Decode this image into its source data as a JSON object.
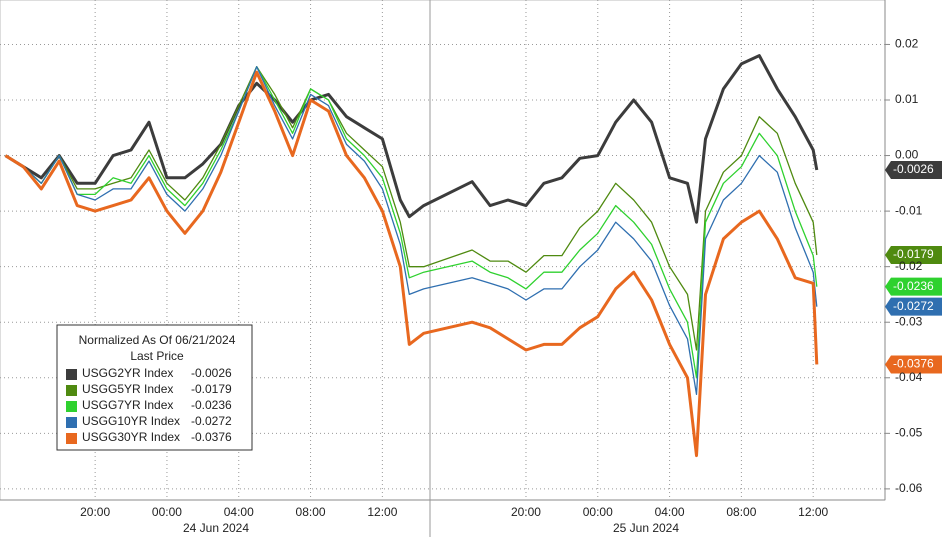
{
  "chart_data": {
    "type": "line",
    "legend_title": "Normalized As Of 06/21/2024",
    "legend_subtitle": "Last Price",
    "x": [
      -9,
      -8,
      -7,
      -6,
      -5,
      -4,
      -3,
      -2,
      -1,
      0,
      1,
      2,
      3,
      4,
      5,
      6,
      7,
      8,
      9,
      10,
      11,
      12,
      13,
      13.5,
      14.3,
      17,
      18,
      19,
      20,
      21,
      22,
      23,
      24,
      25,
      26,
      27,
      28,
      29,
      29.5,
      30,
      31,
      32,
      33,
      34,
      35,
      36,
      36.2
    ],
    "series": [
      {
        "name": "USGG2YR Index",
        "color": "#3c3c3c",
        "values": [
          0,
          -0.002,
          -0.004,
          0,
          -0.005,
          -0.005,
          0,
          0.001,
          0.006,
          -0.004,
          -0.004,
          -0.0015,
          0.002,
          0.009,
          0.013,
          0.01,
          0.006,
          0.01,
          0.011,
          0.007,
          0.005,
          0.003,
          -0.008,
          -0.011,
          -0.009,
          -0.0047,
          -0.009,
          -0.008,
          -0.009,
          -0.005,
          -0.004,
          -0.0005,
          0,
          0.006,
          0.01,
          0.006,
          -0.004,
          -0.005,
          -0.012,
          0.003,
          0.012,
          0.0165,
          0.018,
          0.012,
          0.007,
          0.001,
          -0.0026
        ]
      },
      {
        "name": "USGG5YR Index",
        "color": "#4f8a10",
        "values": [
          0,
          -0.002,
          -0.005,
          0,
          -0.006,
          -0.006,
          -0.005,
          -0.004,
          0.001,
          -0.005,
          -0.008,
          -0.004,
          0.002,
          0.009,
          0.016,
          0.011,
          0.005,
          0.012,
          0.01,
          0.004,
          0.001,
          -0.002,
          -0.012,
          -0.02,
          -0.02,
          -0.017,
          -0.019,
          -0.019,
          -0.021,
          -0.018,
          -0.018,
          -0.013,
          -0.01,
          -0.005,
          -0.008,
          -0.012,
          -0.02,
          -0.025,
          -0.035,
          -0.01,
          -0.003,
          0,
          0.007,
          0.004,
          -0.005,
          -0.012,
          -0.0179
        ]
      },
      {
        "name": "USGG7YR Index",
        "color": "#2fd12f",
        "values": [
          0,
          -0.002,
          -0.005,
          0,
          -0.007,
          -0.007,
          -0.004,
          -0.005,
          0,
          -0.006,
          -0.009,
          -0.005,
          0.001,
          0.008,
          0.016,
          0.01,
          0.004,
          0.012,
          0.01,
          0.003,
          0,
          -0.004,
          -0.014,
          -0.022,
          -0.021,
          -0.019,
          -0.021,
          -0.022,
          -0.024,
          -0.021,
          -0.021,
          -0.017,
          -0.014,
          -0.009,
          -0.012,
          -0.016,
          -0.024,
          -0.03,
          -0.04,
          -0.012,
          -0.005,
          -0.002,
          0.004,
          0,
          -0.01,
          -0.018,
          -0.0236
        ]
      },
      {
        "name": "USGG10YR Index",
        "color": "#2f6fb0",
        "values": [
          0,
          -0.002,
          -0.005,
          0,
          -0.007,
          -0.008,
          -0.006,
          -0.006,
          -0.001,
          -0.007,
          -0.01,
          -0.006,
          0,
          0.008,
          0.016,
          0.009,
          0.003,
          0.011,
          0.009,
          0.002,
          -0.001,
          -0.006,
          -0.016,
          -0.025,
          -0.024,
          -0.022,
          -0.023,
          -0.024,
          -0.026,
          -0.024,
          -0.024,
          -0.02,
          -0.017,
          -0.012,
          -0.015,
          -0.019,
          -0.027,
          -0.033,
          -0.043,
          -0.015,
          -0.008,
          -0.005,
          0,
          -0.003,
          -0.013,
          -0.021,
          -0.0272
        ]
      },
      {
        "name": "USGG30YR Index",
        "color": "#e8681f",
        "values": [
          0,
          -0.002,
          -0.006,
          -0.001,
          -0.009,
          -0.01,
          -0.009,
          -0.008,
          -0.004,
          -0.01,
          -0.014,
          -0.01,
          -0.003,
          0.006,
          0.015,
          0.008,
          0,
          0.01,
          0.008,
          0,
          -0.004,
          -0.01,
          -0.02,
          -0.034,
          -0.032,
          -0.03,
          -0.031,
          -0.033,
          -0.035,
          -0.034,
          -0.034,
          -0.031,
          -0.029,
          -0.024,
          -0.021,
          -0.026,
          -0.034,
          -0.04,
          -0.054,
          -0.025,
          -0.015,
          -0.012,
          -0.01,
          -0.015,
          -0.022,
          -0.023,
          -0.0376
        ]
      }
    ],
    "xlim": [
      -9.3,
      40
    ],
    "xticks": [
      {
        "value": -4,
        "label": "20:00"
      },
      {
        "value": 0,
        "label": "00:00"
      },
      {
        "value": 4,
        "label": "04:00"
      },
      {
        "value": 8,
        "label": "08:00"
      },
      {
        "value": 12,
        "label": "12:00"
      },
      {
        "value": 20,
        "label": "20:00"
      },
      {
        "value": 24,
        "label": "00:00"
      },
      {
        "value": 28,
        "label": "04:00"
      },
      {
        "value": 32,
        "label": "08:00"
      },
      {
        "value": 36,
        "label": "12:00"
      }
    ],
    "date_labels": [
      "24 Jun 2024",
      "25 Jun 2024"
    ],
    "ylim": [
      -0.062,
      0.028
    ],
    "yticks": [
      0.02,
      0.01,
      {
        "value": 0,
        "label": "0.00"
      },
      -0.01,
      -0.02,
      -0.03,
      -0.04,
      -0.05,
      -0.06
    ],
    "grid": true
  }
}
